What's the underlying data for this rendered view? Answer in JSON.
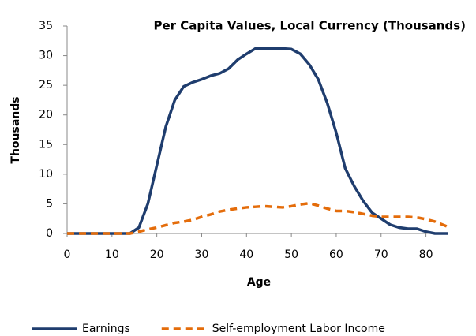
{
  "chart_data": {
    "type": "line",
    "title": "Per Capita Values, Local Currency (Thousands)",
    "x_label": "Age",
    "y_label": "Thousands",
    "x": [
      0,
      2,
      4,
      6,
      8,
      10,
      12,
      14,
      16,
      18,
      20,
      22,
      24,
      26,
      28,
      30,
      32,
      34,
      36,
      38,
      40,
      42,
      44,
      46,
      48,
      50,
      52,
      54,
      56,
      58,
      60,
      62,
      64,
      66,
      68,
      70,
      72,
      74,
      76,
      78,
      80,
      82,
      84,
      85
    ],
    "series": [
      {
        "name": "Earnings",
        "color": "#1f3d6e",
        "dash": false,
        "values": [
          0,
          0,
          0,
          0,
          0,
          0,
          0,
          0,
          1,
          5,
          11.5,
          18,
          22.5,
          24.8,
          25.5,
          26,
          26.6,
          27,
          27.8,
          29.3,
          30.3,
          31.2,
          31.2,
          31.2,
          31.2,
          31.1,
          30.3,
          28.5,
          26,
          22,
          17,
          11,
          8,
          5.5,
          3.5,
          2.5,
          1.5,
          1,
          0.8,
          0.8,
          0.3,
          0,
          0,
          0
        ]
      },
      {
        "name": "Self-employment Labor Income",
        "color": "#e46c0a",
        "dash": true,
        "values": [
          0,
          0,
          0,
          0,
          0,
          0,
          0,
          0,
          0.3,
          0.7,
          1,
          1.4,
          1.8,
          2,
          2.3,
          2.8,
          3.2,
          3.7,
          4,
          4.2,
          4.4,
          4.5,
          4.6,
          4.5,
          4.4,
          4.6,
          4.9,
          5.1,
          4.7,
          4.2,
          3.8,
          3.8,
          3.6,
          3.3,
          3,
          2.8,
          2.8,
          2.8,
          2.8,
          2.7,
          2.4,
          2,
          1.4,
          1.1
        ]
      }
    ],
    "xlim": [
      0,
      85
    ],
    "xticks": [
      0,
      10,
      20,
      30,
      40,
      50,
      60,
      70,
      80
    ],
    "ylim": [
      0,
      35
    ],
    "yticks": [
      0,
      5,
      10,
      15,
      20,
      25,
      30,
      35
    ],
    "grid": false,
    "legend": "bottom"
  }
}
